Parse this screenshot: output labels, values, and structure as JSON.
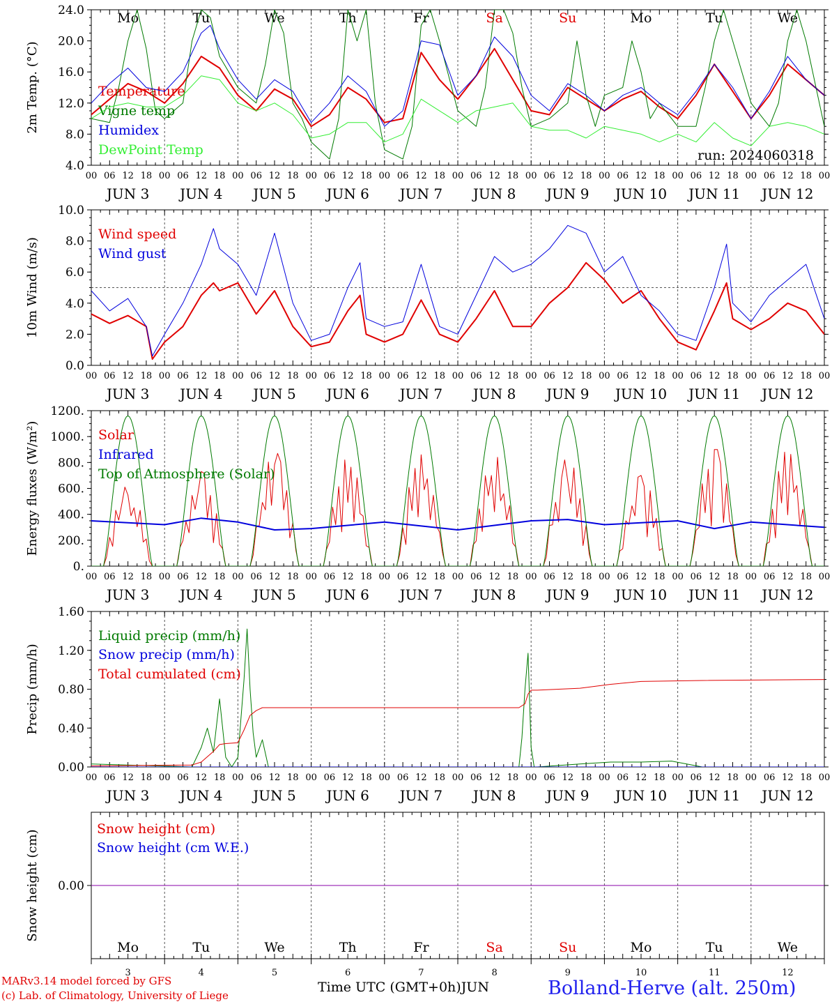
{
  "colors": {
    "red": "#e00000",
    "green": "#007a00",
    "blue": "#0000dd",
    "light_green": "#33ee33",
    "purple": "#8800aa"
  },
  "footer": {
    "model": "MARv3.14 model forced by GFS",
    "lab": "(c) Lab. of Climatology, University of Liege",
    "xlabel": "Time UTC (GMT+0h)JUN",
    "site": "Bolland-Herve (alt. 250m)"
  },
  "chart_data": [
    {
      "type": "line",
      "ylabel": "2m Temp. (°C)",
      "ylim": [
        4,
        24
      ],
      "yticks": [
        "4.0",
        "8.0",
        "12.0",
        "16.0",
        "20.0",
        "24.0"
      ],
      "ytick_values": [
        4,
        8,
        12,
        16,
        20,
        24
      ],
      "annotation": "run: 2024060318",
      "day_names": [
        "Mo",
        "Tu",
        "We",
        "Th",
        "Fr",
        "Sa",
        "Su",
        "Mo",
        "Tu",
        "We"
      ],
      "weekend_days": [
        5,
        6
      ],
      "x_hour_ticks": [
        "00",
        "06",
        "12",
        "18"
      ],
      "x_days": [
        "JUN 3",
        "JUN 4",
        "JUN 5",
        "JUN 6",
        "JUN 7",
        "JUN 8",
        "JUN 9",
        "JUN 10",
        "JUN 11",
        "JUN 12"
      ],
      "series": [
        {
          "name": "Temperature",
          "color": "red",
          "width": 2,
          "x": [
            0,
            6,
            12,
            18,
            24,
            30,
            36,
            42,
            48,
            54,
            60,
            66,
            72,
            78,
            84,
            90,
            96,
            102,
            108,
            114,
            120,
            126,
            132,
            138,
            144,
            150,
            156,
            162,
            168,
            174,
            180,
            186,
            192,
            198,
            204,
            210,
            216,
            222,
            228,
            234,
            240
          ],
          "y": [
            10.5,
            12.5,
            14.5,
            13.5,
            12.0,
            14.5,
            18.0,
            16.5,
            13.0,
            11.0,
            13.8,
            12.5,
            9.0,
            10.5,
            14.0,
            12.5,
            9.5,
            10.0,
            18.5,
            15.0,
            12.5,
            15.5,
            19.0,
            15.0,
            11.0,
            10.5,
            14.0,
            12.5,
            11.0,
            12.5,
            13.5,
            11.5,
            10.0,
            13.0,
            17.0,
            13.5,
            10.0,
            13.0,
            17.0,
            15.0,
            13.0
          ]
        },
        {
          "name": "Vigne temp",
          "color": "green",
          "width": 1,
          "x": [
            0,
            6,
            9,
            12,
            15,
            18,
            21,
            24,
            30,
            33,
            36,
            39,
            42,
            48,
            54,
            57,
            60,
            63,
            66,
            69,
            72,
            78,
            81,
            84,
            87,
            90,
            93,
            96,
            102,
            105,
            108,
            111,
            114,
            120,
            126,
            129,
            132,
            135,
            138,
            141,
            144,
            150,
            156,
            159,
            162,
            165,
            168,
            174,
            177,
            180,
            183,
            186,
            192,
            198,
            201,
            204,
            207,
            210,
            216,
            222,
            225,
            228,
            231,
            234,
            240
          ],
          "y": [
            10,
            9.5,
            14,
            20,
            24,
            19,
            11,
            10,
            12,
            20,
            24,
            23,
            18,
            14,
            12,
            17,
            24,
            21,
            12,
            10,
            7,
            4.8,
            10,
            24,
            20,
            24,
            12,
            6,
            4.8,
            9,
            22,
            24,
            20,
            11,
            9,
            14,
            24,
            24,
            21,
            14,
            9,
            10,
            12,
            20,
            13,
            9,
            13,
            14,
            20,
            16,
            10,
            12,
            9,
            9,
            14,
            20,
            24,
            20,
            12,
            9,
            12,
            20,
            24,
            20,
            9.0
          ]
        },
        {
          "name": "Humidex",
          "color": "blue",
          "width": 1,
          "x": [
            0,
            6,
            12,
            18,
            24,
            30,
            36,
            39,
            42,
            48,
            54,
            60,
            66,
            72,
            78,
            84,
            90,
            96,
            102,
            108,
            114,
            120,
            126,
            132,
            138,
            144,
            150,
            156,
            162,
            168,
            174,
            180,
            186,
            192,
            198,
            204,
            210,
            216,
            222,
            228,
            234,
            240
          ],
          "y": [
            12.0,
            14.5,
            16.5,
            14.0,
            13.5,
            16.0,
            21.0,
            22.0,
            19.0,
            15.0,
            12.5,
            15.0,
            13.5,
            9.5,
            12.0,
            15.5,
            13.5,
            9.0,
            11.0,
            20.0,
            19.5,
            13.0,
            15.5,
            20.5,
            18.0,
            13.0,
            11.0,
            14.5,
            13.0,
            11.0,
            13.0,
            14.0,
            12.0,
            10.5,
            13.5,
            17.0,
            14.0,
            10.0,
            13.5,
            18.0,
            15.0,
            13.0
          ]
        },
        {
          "name": "DewPoint Temp",
          "color": "light_green",
          "width": 1,
          "x": [
            0,
            6,
            12,
            18,
            24,
            30,
            36,
            42,
            48,
            54,
            60,
            66,
            72,
            78,
            84,
            90,
            96,
            102,
            108,
            114,
            120,
            126,
            132,
            138,
            144,
            150,
            156,
            162,
            168,
            174,
            180,
            186,
            192,
            198,
            204,
            210,
            216,
            222,
            228,
            234,
            240
          ],
          "y": [
            10.0,
            11.5,
            12.0,
            11.5,
            11.5,
            13.0,
            15.5,
            15.0,
            12.0,
            11.0,
            12.0,
            10.5,
            7.5,
            8.0,
            9.5,
            9.5,
            7.0,
            8.0,
            12.5,
            11.0,
            9.5,
            11.0,
            11.5,
            12.0,
            9.0,
            8.5,
            8.5,
            7.5,
            9.0,
            8.5,
            8.0,
            7.0,
            8.0,
            7.0,
            9.5,
            7.5,
            6.5,
            9.0,
            9.5,
            9.0,
            8.0
          ]
        }
      ]
    },
    {
      "type": "line",
      "ylabel": "10m Wind (m/s)",
      "ylim": [
        0,
        10
      ],
      "yticks": [
        "0.0",
        "2.0",
        "4.0",
        "6.0",
        "8.0",
        "10.0"
      ],
      "ytick_values": [
        0,
        2,
        4,
        6,
        8,
        10
      ],
      "reference_line": 5.0,
      "x_hour_ticks": [
        "00",
        "06",
        "12",
        "18"
      ],
      "x_days": [
        "JUN 3",
        "JUN 4",
        "JUN 5",
        "JUN 6",
        "JUN 7",
        "JUN 8",
        "JUN 9",
        "JUN 10",
        "JUN 11",
        "JUN 12"
      ],
      "series": [
        {
          "name": "Wind speed",
          "color": "red",
          "width": 2,
          "x": [
            0,
            6,
            12,
            18,
            20,
            24,
            30,
            36,
            40,
            42,
            48,
            54,
            60,
            66,
            72,
            78,
            84,
            88,
            90,
            96,
            102,
            108,
            114,
            120,
            126,
            132,
            138,
            144,
            150,
            156,
            162,
            168,
            174,
            180,
            186,
            192,
            198,
            204,
            208,
            210,
            216,
            222,
            228,
            234,
            240
          ],
          "y": [
            3.3,
            2.7,
            3.2,
            2.5,
            0.4,
            1.5,
            2.5,
            4.5,
            5.3,
            4.8,
            5.3,
            3.3,
            4.8,
            2.5,
            1.2,
            1.5,
            3.5,
            4.5,
            2.0,
            1.5,
            2.0,
            4.2,
            2.0,
            1.5,
            3.0,
            4.8,
            2.5,
            2.5,
            4.0,
            5.0,
            6.6,
            5.5,
            4.0,
            4.8,
            3.0,
            1.5,
            1.0,
            3.5,
            5.3,
            3.0,
            2.3,
            3.0,
            4.0,
            3.5,
            2.0
          ]
        },
        {
          "name": "Wind gust",
          "color": "blue",
          "width": 1,
          "x": [
            0,
            6,
            12,
            18,
            20,
            24,
            30,
            36,
            40,
            42,
            48,
            54,
            60,
            66,
            72,
            78,
            84,
            88,
            90,
            96,
            102,
            108,
            114,
            120,
            126,
            132,
            138,
            144,
            150,
            156,
            162,
            168,
            174,
            180,
            186,
            192,
            198,
            204,
            208,
            210,
            216,
            222,
            228,
            234,
            240
          ],
          "y": [
            4.8,
            3.5,
            4.3,
            2.5,
            0.6,
            2.0,
            4.0,
            6.5,
            8.8,
            7.5,
            6.5,
            4.5,
            8.5,
            4.0,
            1.6,
            2.0,
            5.0,
            6.6,
            3.0,
            2.5,
            2.8,
            6.5,
            2.5,
            2.0,
            4.5,
            7.0,
            6.0,
            6.5,
            7.5,
            9.0,
            8.5,
            6.0,
            7.0,
            4.5,
            3.5,
            2.0,
            1.6,
            5.0,
            7.8,
            4.0,
            2.8,
            4.5,
            5.5,
            6.5,
            3.0
          ]
        }
      ]
    },
    {
      "type": "line",
      "ylabel": "Energy fluxes (W/m²)",
      "ylim": [
        0,
        1200
      ],
      "yticks": [
        "0.",
        "200.",
        "400.",
        "600.",
        "800.",
        "1000.",
        "1200."
      ],
      "ytick_values": [
        0,
        200,
        400,
        600,
        800,
        1000,
        1200
      ],
      "x_hour_ticks": [
        "00",
        "06",
        "12",
        "18"
      ],
      "x_days": [
        "JUN 3",
        "JUN 4",
        "JUN 5",
        "JUN 6",
        "JUN 7",
        "JUN 8",
        "JUN 9",
        "JUN 10",
        "JUN 11",
        "JUN 12"
      ],
      "series": [
        {
          "name": "Solar",
          "color": "red",
          "width": 1,
          "daily_peaks": [
            610,
            730,
            870,
            820,
            860,
            840,
            820,
            700,
            900,
            880
          ]
        },
        {
          "name": "Infrared",
          "color": "blue",
          "width": 2,
          "x": [
            0,
            24,
            36,
            48,
            60,
            72,
            96,
            120,
            144,
            156,
            168,
            192,
            204,
            216,
            240
          ],
          "y": [
            350,
            320,
            370,
            340,
            280,
            290,
            340,
            280,
            350,
            360,
            320,
            350,
            290,
            340,
            300
          ]
        },
        {
          "name": "Top of Atmosphere (Solar)",
          "color": "green",
          "width": 1,
          "daily_peak": 1160,
          "sunrise_hour": 4,
          "sunset_hour": 20
        }
      ]
    },
    {
      "type": "line",
      "ylabel": "Precip (mm/h)",
      "ylim": [
        0,
        1.6
      ],
      "yticks": [
        "0.00",
        "0.40",
        "0.80",
        "1.20",
        "1.60"
      ],
      "ytick_values": [
        0,
        0.4,
        0.8,
        1.2,
        1.6
      ],
      "x_hour_ticks": [
        "00",
        "06",
        "12",
        "18"
      ],
      "x_days": [
        "JUN 3",
        "JUN 4",
        "JUN 5",
        "JUN 6",
        "JUN 7",
        "JUN 8",
        "JUN 9",
        "JUN 10",
        "JUN 11",
        "JUN 12"
      ],
      "series": [
        {
          "name": "Liquid precip (mm/h)",
          "color": "green",
          "width": 1,
          "x": [
            0,
            33,
            36,
            38,
            40,
            42,
            44,
            46,
            48,
            50,
            51,
            52,
            53,
            54,
            56,
            58,
            60,
            62,
            64,
            140,
            141,
            142,
            143,
            144,
            145,
            146,
            160,
            170,
            180,
            190,
            200,
            240
          ],
          "y": [
            0.03,
            0.0,
            0.2,
            0.4,
            0.15,
            0.7,
            0.1,
            0.0,
            0.1,
            0.9,
            1.42,
            0.8,
            0.35,
            0.1,
            0.28,
            0.0,
            0.0,
            0.0,
            0.0,
            0.0,
            0.3,
            0.8,
            1.17,
            0.2,
            0.0,
            0.0,
            0.03,
            0.05,
            0.05,
            0.06,
            0.0,
            0.0
          ]
        },
        {
          "name": "Snow precip (mm/h)",
          "color": "blue",
          "width": 1,
          "x": [
            0,
            240
          ],
          "y": [
            0,
            0
          ]
        },
        {
          "name": "Total cumulated (cm)",
          "color": "red",
          "width": 1,
          "x": [
            0,
            33,
            36,
            40,
            42,
            44,
            48,
            50,
            52,
            54,
            56,
            60,
            140,
            142,
            143,
            144,
            146,
            160,
            170,
            180,
            200,
            240
          ],
          "y": [
            0.01,
            0.02,
            0.05,
            0.16,
            0.23,
            0.24,
            0.25,
            0.38,
            0.53,
            0.58,
            0.61,
            0.61,
            0.61,
            0.65,
            0.75,
            0.79,
            0.79,
            0.81,
            0.85,
            0.88,
            0.89,
            0.9
          ]
        }
      ]
    },
    {
      "type": "line",
      "ylabel": "Snow height (cm)",
      "ylim": [
        -1,
        1
      ],
      "yticks": [
        "0.00"
      ],
      "ytick_values": [
        0
      ],
      "day_names": [
        "Mo",
        "Tu",
        "We",
        "Th",
        "Fr",
        "Sa",
        "Su",
        "Mo",
        "Tu",
        "We"
      ],
      "weekend_days": [
        5,
        6
      ],
      "day_numbers": [
        "3",
        "4",
        "5",
        "6",
        "7",
        "8",
        "9",
        "10",
        "11",
        "12"
      ],
      "series": [
        {
          "name": "Snow height (cm)",
          "color": "red",
          "width": 1,
          "x": [
            0,
            240
          ],
          "y": [
            0,
            0
          ]
        },
        {
          "name": "Snow height (cm W.E.)",
          "color": "blue",
          "width": 1,
          "x": [
            0,
            240
          ],
          "y": [
            0,
            0
          ]
        }
      ]
    }
  ]
}
